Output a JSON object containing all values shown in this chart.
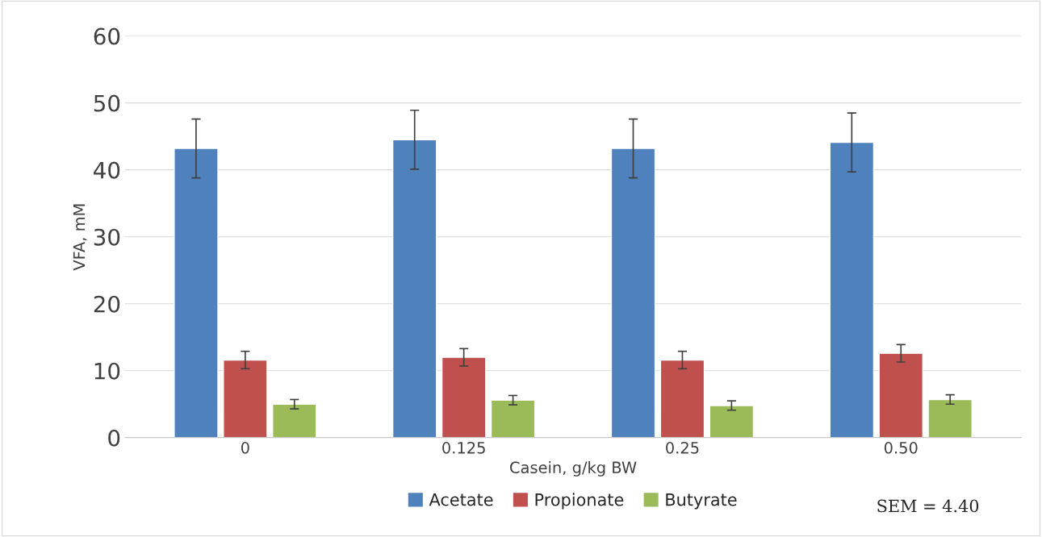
{
  "chart_data": {
    "type": "bar",
    "xlabel": "Casein, g/kg BW",
    "ylabel": "VFA, mM",
    "categories": [
      "0",
      "0.125",
      "0.25",
      "0.50"
    ],
    "series": [
      {
        "name": "Acetate",
        "color": "#4f81bd",
        "values": [
          43.2,
          44.5,
          43.2,
          44.1
        ],
        "errors": [
          4.4,
          4.4,
          4.4,
          4.4
        ]
      },
      {
        "name": "Propionate",
        "color": "#c0504d",
        "values": [
          11.6,
          12.0,
          11.6,
          12.6
        ],
        "errors": [
          1.3,
          1.3,
          1.3,
          1.3
        ]
      },
      {
        "name": "Butyrate",
        "color": "#9bbb59",
        "values": [
          5.0,
          5.6,
          4.8,
          5.7
        ],
        "errors": [
          0.7,
          0.7,
          0.7,
          0.7
        ]
      }
    ],
    "ylim": [
      0,
      60
    ],
    "yticks": [
      0,
      10,
      20,
      30,
      40,
      50,
      60
    ],
    "grid": "y",
    "legend": "bottom",
    "annotations": [
      "SEM = 4.40"
    ]
  }
}
